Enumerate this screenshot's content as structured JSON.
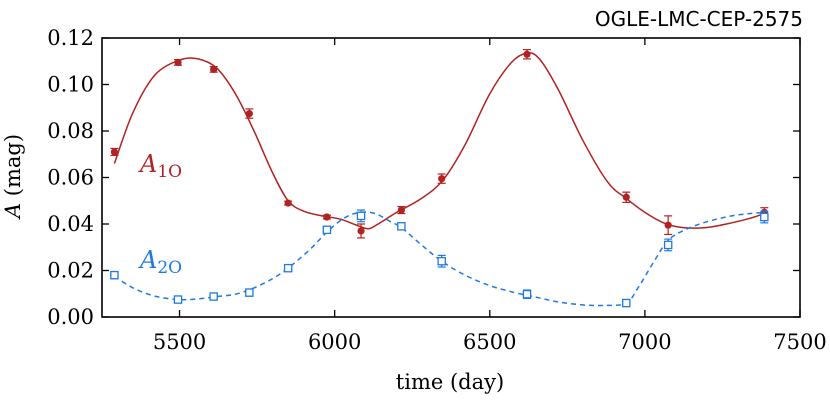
{
  "chart_data": {
    "type": "scatter",
    "title": "OGLE-LMC-CEP-2575",
    "xlabel": "time (day)",
    "ylabel_var": "A",
    "ylabel_unit": "(mag)",
    "xlim": [
      5250,
      7500
    ],
    "ylim": [
      0.0,
      0.12
    ],
    "x_ticks": [
      5500,
      6000,
      6500,
      7000,
      7500
    ],
    "y_ticks": [
      "0.00",
      "0.02",
      "0.04",
      "0.06",
      "0.08",
      "0.10",
      "0.12"
    ],
    "grid": false,
    "series": [
      {
        "name_main": "A",
        "name_sub": "1O",
        "color": "#b22222",
        "marker": "filled-circle",
        "line_style": "solid",
        "points": [
          {
            "x": 5290,
            "y": 0.071,
            "err": 0.0015
          },
          {
            "x": 5495,
            "y": 0.1095,
            "err": 0.0012
          },
          {
            "x": 5610,
            "y": 0.1065,
            "err": 0.0012
          },
          {
            "x": 5725,
            "y": 0.0875,
            "err": 0.002
          },
          {
            "x": 5850,
            "y": 0.049,
            "err": 0.0008
          },
          {
            "x": 5975,
            "y": 0.043,
            "err": 0.0008
          },
          {
            "x": 6085,
            "y": 0.037,
            "err": 0.003
          },
          {
            "x": 6215,
            "y": 0.046,
            "err": 0.0015
          },
          {
            "x": 6345,
            "y": 0.0595,
            "err": 0.002
          },
          {
            "x": 6620,
            "y": 0.113,
            "err": 0.002
          },
          {
            "x": 6940,
            "y": 0.0515,
            "err": 0.0022
          },
          {
            "x": 7075,
            "y": 0.0395,
            "err": 0.004
          },
          {
            "x": 7385,
            "y": 0.045,
            "err": 0.002
          }
        ],
        "curve": [
          [
            5290,
            0.066
          ],
          [
            5350,
            0.088
          ],
          [
            5420,
            0.104
          ],
          [
            5500,
            0.1105
          ],
          [
            5560,
            0.111
          ],
          [
            5620,
            0.107
          ],
          [
            5680,
            0.096
          ],
          [
            5740,
            0.08
          ],
          [
            5800,
            0.062
          ],
          [
            5850,
            0.05
          ],
          [
            5900,
            0.0455
          ],
          [
            5960,
            0.0435
          ],
          [
            6020,
            0.042
          ],
          [
            6080,
            0.039
          ],
          [
            6110,
            0.038
          ],
          [
            6140,
            0.04
          ],
          [
            6200,
            0.045
          ],
          [
            6280,
            0.051
          ],
          [
            6350,
            0.059
          ],
          [
            6420,
            0.074
          ],
          [
            6500,
            0.096
          ],
          [
            6570,
            0.1095
          ],
          [
            6620,
            0.1135
          ],
          [
            6660,
            0.111
          ],
          [
            6720,
            0.098
          ],
          [
            6800,
            0.076
          ],
          [
            6880,
            0.058
          ],
          [
            6940,
            0.051
          ],
          [
            7000,
            0.045
          ],
          [
            7060,
            0.0405
          ],
          [
            7120,
            0.0385
          ],
          [
            7200,
            0.0385
          ],
          [
            7280,
            0.0405
          ],
          [
            7340,
            0.0425
          ],
          [
            7385,
            0.0445
          ]
        ]
      },
      {
        "name_main": "A",
        "name_sub": "2O",
        "color": "#1f7ae0",
        "marker": "open-square",
        "line_style": "dashed",
        "points": [
          {
            "x": 5290,
            "y": 0.018,
            "err": 0.0015
          },
          {
            "x": 5495,
            "y": 0.0075,
            "err": 0.0008
          },
          {
            "x": 5610,
            "y": 0.0088,
            "err": 0.0008
          },
          {
            "x": 5725,
            "y": 0.0105,
            "err": 0.0015
          },
          {
            "x": 5850,
            "y": 0.021,
            "err": 0.0008
          },
          {
            "x": 5975,
            "y": 0.0375,
            "err": 0.001
          },
          {
            "x": 6085,
            "y": 0.0435,
            "err": 0.0025
          },
          {
            "x": 6215,
            "y": 0.039,
            "err": 0.0012
          },
          {
            "x": 6345,
            "y": 0.024,
            "err": 0.0025
          },
          {
            "x": 6620,
            "y": 0.0098,
            "err": 0.0018
          },
          {
            "x": 6940,
            "y": 0.006,
            "err": 0.0012
          },
          {
            "x": 7075,
            "y": 0.031,
            "err": 0.0025
          },
          {
            "x": 7385,
            "y": 0.043,
            "err": 0.0025
          }
        ],
        "curve": [
          [
            5290,
            0.0175
          ],
          [
            5350,
            0.0125
          ],
          [
            5420,
            0.009
          ],
          [
            5495,
            0.0075
          ],
          [
            5560,
            0.0078
          ],
          [
            5620,
            0.0088
          ],
          [
            5680,
            0.0098
          ],
          [
            5740,
            0.0125
          ],
          [
            5800,
            0.0165
          ],
          [
            5850,
            0.021
          ],
          [
            5920,
            0.029
          ],
          [
            5975,
            0.0365
          ],
          [
            6030,
            0.0425
          ],
          [
            6080,
            0.045
          ],
          [
            6130,
            0.0445
          ],
          [
            6180,
            0.041
          ],
          [
            6215,
            0.0385
          ],
          [
            6280,
            0.031
          ],
          [
            6345,
            0.024
          ],
          [
            6420,
            0.018
          ],
          [
            6500,
            0.0135
          ],
          [
            6580,
            0.0105
          ],
          [
            6650,
            0.0085
          ],
          [
            6720,
            0.0065
          ],
          [
            6800,
            0.0052
          ],
          [
            6870,
            0.005
          ],
          [
            6940,
            0.006
          ],
          [
            6980,
            0.013
          ],
          [
            7030,
            0.024
          ],
          [
            7075,
            0.033
          ],
          [
            7130,
            0.0375
          ],
          [
            7200,
            0.041
          ],
          [
            7280,
            0.0435
          ],
          [
            7340,
            0.0445
          ],
          [
            7385,
            0.045
          ]
        ]
      }
    ]
  }
}
